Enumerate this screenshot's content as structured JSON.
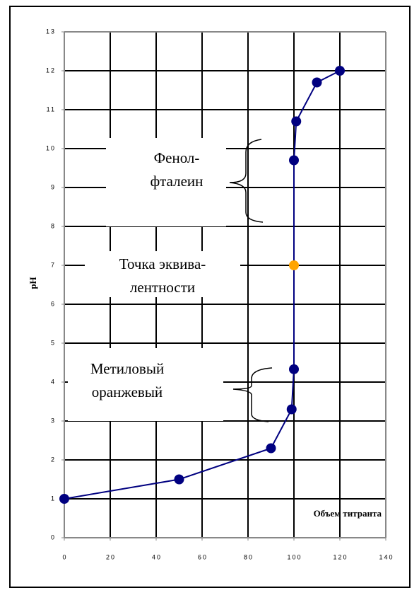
{
  "chart_data": {
    "type": "line",
    "xlabel": "Объем титранта",
    "ylabel": "pH",
    "series": [
      {
        "color": "#000080",
        "x": [
          0,
          50,
          90,
          99,
          100,
          100,
          100,
          101,
          110,
          120
        ],
        "values": [
          1,
          1.5,
          2.3,
          3.3,
          4.33,
          7,
          9.7,
          10.7,
          11.7,
          12
        ],
        "marker_colors": [
          "#000080",
          "#000080",
          "#000080",
          "#000080",
          "#000080",
          "#ffa500",
          "#000080",
          "#000080",
          "#000080",
          "#000080"
        ]
      }
    ],
    "xlim": [
      0,
      140
    ],
    "xticks": [
      0,
      20,
      40,
      60,
      80,
      100,
      120,
      140
    ],
    "ylim": [
      0,
      13
    ],
    "yticks": [
      0,
      1,
      2,
      3,
      4,
      5,
      6,
      7,
      8,
      9,
      10,
      11,
      12,
      13
    ],
    "grid": true,
    "annotations": [
      {
        "lines": [
          "Фенол-",
          "фталеин"
        ]
      },
      {
        "lines": [
          "Точка эквива-",
          "лентности"
        ]
      },
      {
        "lines": [
          "Метиловый",
          "оранжевый"
        ]
      }
    ]
  }
}
